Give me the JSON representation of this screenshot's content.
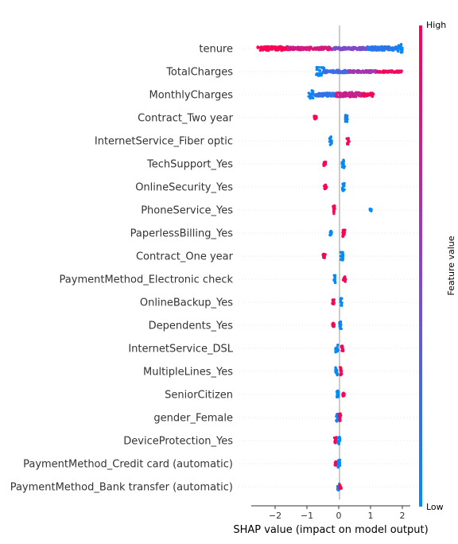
{
  "chart_data": {
    "type": "scatter",
    "subtype": "shap-beeswarm",
    "title": "",
    "xlabel": "SHAP value (impact on model output)",
    "ylabel": "",
    "xlim": [
      -2.75,
      2.25
    ],
    "xticks": [
      -2,
      -1,
      0,
      1,
      2
    ],
    "xtick_labels": [
      "−2",
      "−1",
      "0",
      "1",
      "2"
    ],
    "grid": false,
    "zero_line": true,
    "colors": {
      "low": "#008bfb",
      "high": "#ff0052",
      "mid": "#8c44c5",
      "zero_line": "#999999",
      "row_guide": "#cccccc"
    },
    "colorbar": {
      "label": "Feature value",
      "high_label": "High",
      "low_label": "Low"
    },
    "features": [
      {
        "name": "tenure",
        "clusters": [
          {
            "min": -2.55,
            "max": -1.6,
            "t": 1.0,
            "spread": 0.22
          },
          {
            "min": -1.6,
            "max": -0.2,
            "t": 0.82,
            "spread": 0.16
          },
          {
            "min": -0.2,
            "max": 0.9,
            "t": 0.45,
            "spread": 0.14
          },
          {
            "min": 0.9,
            "max": 1.85,
            "t": 0.15,
            "spread": 0.2
          },
          {
            "min": 1.85,
            "max": 2.0,
            "t": 0.0,
            "spread": 0.45
          }
        ]
      },
      {
        "name": "TotalCharges",
        "clusters": [
          {
            "min": -0.72,
            "max": -0.45,
            "t": 0.0,
            "spread": 0.45
          },
          {
            "min": -0.45,
            "max": 0.3,
            "t": 0.25,
            "spread": 0.15
          },
          {
            "min": 0.3,
            "max": 1.2,
            "t": 0.6,
            "spread": 0.12
          },
          {
            "min": 1.2,
            "max": 1.98,
            "t": 0.95,
            "spread": 0.1
          }
        ]
      },
      {
        "name": "MonthlyCharges",
        "clusters": [
          {
            "min": -0.95,
            "max": -0.8,
            "t": 0.0,
            "spread": 0.45
          },
          {
            "min": -0.8,
            "max": -0.1,
            "t": 0.15,
            "spread": 0.18
          },
          {
            "min": -0.1,
            "max": 0.75,
            "t": 0.75,
            "spread": 0.25
          },
          {
            "min": 0.75,
            "max": 1.1,
            "t": 1.0,
            "spread": 0.2
          }
        ]
      },
      {
        "name": "Contract_Two year",
        "clusters": [
          {
            "min": -0.78,
            "max": -0.7,
            "t": 1.0,
            "spread": 0.18
          },
          {
            "min": 0.2,
            "max": 0.28,
            "t": 0.0,
            "spread": 0.42
          }
        ]
      },
      {
        "name": "InternetService_Fiber optic",
        "clusters": [
          {
            "min": -0.3,
            "max": -0.22,
            "t": 0.0,
            "spread": 0.42
          },
          {
            "min": 0.25,
            "max": 0.33,
            "t": 1.0,
            "spread": 0.35
          }
        ]
      },
      {
        "name": "TechSupport_Yes",
        "clusters": [
          {
            "min": -0.48,
            "max": -0.4,
            "t": 1.0,
            "spread": 0.22
          },
          {
            "min": 0.1,
            "max": 0.18,
            "t": 0.0,
            "spread": 0.42
          }
        ]
      },
      {
        "name": "OnlineSecurity_Yes",
        "clusters": [
          {
            "min": -0.46,
            "max": -0.38,
            "t": 1.0,
            "spread": 0.22
          },
          {
            "min": 0.1,
            "max": 0.18,
            "t": 0.0,
            "spread": 0.42
          }
        ]
      },
      {
        "name": "PhoneService_Yes",
        "clusters": [
          {
            "min": -0.18,
            "max": -0.12,
            "t": 1.0,
            "spread": 0.45
          },
          {
            "min": 0.98,
            "max": 1.03,
            "t": 0.0,
            "spread": 0.12
          }
        ]
      },
      {
        "name": "PaperlessBilling_Yes",
        "clusters": [
          {
            "min": -0.28,
            "max": -0.22,
            "t": 0.0,
            "spread": 0.3
          },
          {
            "min": 0.12,
            "max": 0.2,
            "t": 1.0,
            "spread": 0.4
          }
        ]
      },
      {
        "name": "Contract_One year",
        "clusters": [
          {
            "min": -0.5,
            "max": -0.42,
            "t": 1.0,
            "spread": 0.22
          },
          {
            "min": 0.06,
            "max": 0.14,
            "t": 0.0,
            "spread": 0.42
          }
        ]
      },
      {
        "name": "PaymentMethod_Electronic check",
        "clusters": [
          {
            "min": -0.16,
            "max": -0.1,
            "t": 0.0,
            "spread": 0.42
          },
          {
            "min": 0.14,
            "max": 0.22,
            "t": 1.0,
            "spread": 0.3
          }
        ]
      },
      {
        "name": "OnlineBackup_Yes",
        "clusters": [
          {
            "min": -0.2,
            "max": -0.14,
            "t": 1.0,
            "spread": 0.28
          },
          {
            "min": 0.04,
            "max": 0.1,
            "t": 0.0,
            "spread": 0.42
          }
        ]
      },
      {
        "name": "Dependents_Yes",
        "clusters": [
          {
            "min": -0.2,
            "max": -0.14,
            "t": 1.0,
            "spread": 0.28
          },
          {
            "min": 0.02,
            "max": 0.08,
            "t": 0.0,
            "spread": 0.42
          }
        ]
      },
      {
        "name": "InternetService_DSL",
        "clusters": [
          {
            "min": -0.1,
            "max": -0.02,
            "t": 0.0,
            "spread": 0.42
          },
          {
            "min": 0.08,
            "max": 0.14,
            "t": 1.0,
            "spread": 0.28
          }
        ]
      },
      {
        "name": "MultipleLines_Yes",
        "clusters": [
          {
            "min": -0.1,
            "max": -0.02,
            "t": 0.0,
            "spread": 0.42
          },
          {
            "min": 0.04,
            "max": 0.1,
            "t": 1.0,
            "spread": 0.42
          }
        ]
      },
      {
        "name": "SeniorCitizen",
        "clusters": [
          {
            "min": -0.06,
            "max": 0.0,
            "t": 0.0,
            "spread": 0.42
          },
          {
            "min": 0.12,
            "max": 0.18,
            "t": 1.0,
            "spread": 0.18
          }
        ]
      },
      {
        "name": "gender_Female",
        "clusters": [
          {
            "min": -0.08,
            "max": -0.01,
            "t": 0.0,
            "spread": 0.42
          },
          {
            "min": 0.0,
            "max": 0.07,
            "t": 1.0,
            "spread": 0.42
          }
        ]
      },
      {
        "name": "DeviceProtection_Yes",
        "clusters": [
          {
            "min": -0.14,
            "max": -0.07,
            "t": 1.0,
            "spread": 0.35
          },
          {
            "min": -0.04,
            "max": 0.04,
            "t": 0.0,
            "spread": 0.42
          }
        ]
      },
      {
        "name": "PaymentMethod_Credit card (automatic)",
        "clusters": [
          {
            "min": -0.12,
            "max": -0.06,
            "t": 1.0,
            "spread": 0.22
          },
          {
            "min": -0.02,
            "max": 0.04,
            "t": 0.0,
            "spread": 0.42
          }
        ]
      },
      {
        "name": "PaymentMethod_Bank transfer (automatic)",
        "clusters": [
          {
            "min": -0.04,
            "max": 0.02,
            "t": 0.0,
            "spread": 0.42
          },
          {
            "min": 0.02,
            "max": 0.08,
            "t": 1.0,
            "spread": 0.22
          }
        ]
      }
    ]
  }
}
